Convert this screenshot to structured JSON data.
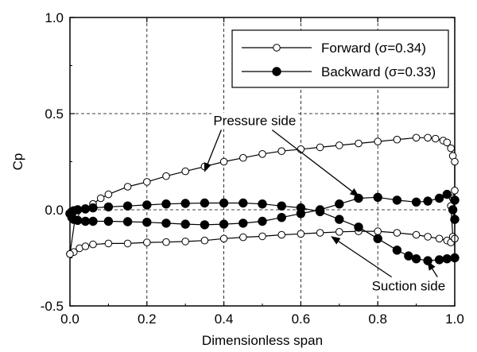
{
  "chart_data": {
    "type": "line",
    "xlabel": "Dimensionless span",
    "ylabel": "Cp",
    "xlim": [
      0.0,
      1.0
    ],
    "ylim": [
      -0.5,
      1.0
    ],
    "x_ticks": [
      "0.0",
      "0.2",
      "0.4",
      "0.6",
      "0.8",
      "1.0"
    ],
    "y_ticks": [
      "-0.5",
      "0.0",
      "0.5",
      "1.0"
    ],
    "grid": true,
    "legend_position": "top-right",
    "series": [
      {
        "name": "Forward (σ=0.34)",
        "marker": "open-circle",
        "points": [
          [
            0.0,
            -0.23
          ],
          [
            0.01,
            -0.22
          ],
          [
            0.025,
            -0.2
          ],
          [
            0.04,
            -0.19
          ],
          [
            0.06,
            -0.18
          ],
          [
            0.1,
            -0.175
          ],
          [
            0.15,
            -0.175
          ],
          [
            0.2,
            -0.17
          ],
          [
            0.25,
            -0.168
          ],
          [
            0.3,
            -0.165
          ],
          [
            0.35,
            -0.16
          ],
          [
            0.4,
            -0.15
          ],
          [
            0.45,
            -0.143
          ],
          [
            0.5,
            -0.138
          ],
          [
            0.55,
            -0.13
          ],
          [
            0.6,
            -0.125
          ],
          [
            0.65,
            -0.12
          ],
          [
            0.7,
            -0.115
          ],
          [
            0.75,
            -0.112
          ],
          [
            0.8,
            -0.112
          ],
          [
            0.85,
            -0.12
          ],
          [
            0.9,
            -0.13
          ],
          [
            0.93,
            -0.14
          ],
          [
            0.96,
            -0.15
          ],
          [
            0.98,
            -0.16
          ],
          [
            0.99,
            -0.17
          ],
          [
            1.0,
            -0.15
          ]
        ]
      },
      {
        "name": "Forward (σ=0.34)",
        "marker": "open-circle",
        "points": [
          [
            0.0,
            -0.23
          ],
          [
            0.015,
            -0.02
          ],
          [
            0.04,
            0.0
          ],
          [
            0.06,
            0.03
          ],
          [
            0.08,
            0.06
          ],
          [
            0.1,
            0.08
          ],
          [
            0.15,
            0.12
          ],
          [
            0.2,
            0.145
          ],
          [
            0.25,
            0.175
          ],
          [
            0.3,
            0.2
          ],
          [
            0.35,
            0.225
          ],
          [
            0.4,
            0.25
          ],
          [
            0.45,
            0.27
          ],
          [
            0.5,
            0.29
          ],
          [
            0.55,
            0.305
          ],
          [
            0.6,
            0.315
          ],
          [
            0.65,
            0.325
          ],
          [
            0.7,
            0.335
          ],
          [
            0.75,
            0.345
          ],
          [
            0.8,
            0.355
          ],
          [
            0.85,
            0.365
          ],
          [
            0.9,
            0.375
          ],
          [
            0.93,
            0.375
          ],
          [
            0.95,
            0.37
          ],
          [
            0.97,
            0.36
          ],
          [
            0.98,
            0.35
          ],
          [
            0.99,
            0.32
          ],
          [
            0.995,
            0.28
          ],
          [
            1.0,
            0.25
          ],
          [
            1.0,
            0.1
          ],
          [
            0.995,
            0.06
          ],
          [
            0.99,
            0.02
          ],
          [
            0.995,
            -0.14
          ],
          [
            1.0,
            -0.15
          ]
        ]
      },
      {
        "name": "Backward (σ=0.33)",
        "marker": "filled-circle",
        "points": [
          [
            0.0,
            -0.02
          ],
          [
            0.005,
            -0.04
          ],
          [
            0.01,
            -0.05
          ],
          [
            0.02,
            -0.055
          ],
          [
            0.04,
            -0.06
          ],
          [
            0.06,
            -0.06
          ],
          [
            0.1,
            -0.06
          ],
          [
            0.15,
            -0.062
          ],
          [
            0.2,
            -0.065
          ],
          [
            0.25,
            -0.07
          ],
          [
            0.3,
            -0.075
          ],
          [
            0.35,
            -0.078
          ],
          [
            0.4,
            -0.075
          ],
          [
            0.45,
            -0.07
          ],
          [
            0.5,
            -0.06
          ],
          [
            0.55,
            -0.04
          ],
          [
            0.6,
            -0.02
          ],
          [
            0.65,
            0.0
          ],
          [
            0.7,
            0.03
          ],
          [
            0.75,
            0.06
          ],
          [
            0.8,
            0.065
          ],
          [
            0.85,
            0.05
          ],
          [
            0.9,
            0.04
          ],
          [
            0.93,
            0.045
          ],
          [
            0.96,
            0.06
          ],
          [
            0.98,
            0.08
          ],
          [
            1.0,
            0.05
          ]
        ]
      },
      {
        "name": "Backward (σ=0.33)",
        "marker": "filled-circle",
        "points": [
          [
            0.0,
            -0.02
          ],
          [
            0.005,
            -0.01
          ],
          [
            0.01,
            -0.005
          ],
          [
            0.02,
            0.0
          ],
          [
            0.04,
            0.005
          ],
          [
            0.06,
            0.01
          ],
          [
            0.1,
            0.015
          ],
          [
            0.15,
            0.02
          ],
          [
            0.2,
            0.025
          ],
          [
            0.25,
            0.03
          ],
          [
            0.3,
            0.033
          ],
          [
            0.35,
            0.035
          ],
          [
            0.4,
            0.035
          ],
          [
            0.45,
            0.035
          ],
          [
            0.5,
            0.03
          ],
          [
            0.55,
            0.02
          ],
          [
            0.6,
            0.01
          ],
          [
            0.65,
            -0.01
          ],
          [
            0.7,
            -0.05
          ],
          [
            0.75,
            -0.09
          ],
          [
            0.8,
            -0.15
          ],
          [
            0.85,
            -0.21
          ],
          [
            0.88,
            -0.24
          ],
          [
            0.9,
            -0.255
          ],
          [
            0.93,
            -0.265
          ],
          [
            0.96,
            -0.26
          ],
          [
            0.98,
            -0.255
          ],
          [
            1.0,
            -0.25
          ],
          [
            1.0,
            -0.05
          ],
          [
            0.995,
            0.0
          ],
          [
            1.0,
            0.05
          ]
        ]
      }
    ],
    "annotations": [
      {
        "text": "Pressure side",
        "pos": [
          0.48,
          0.44
        ],
        "arrows_to": [
          [
            0.35,
            0.2
          ],
          [
            0.75,
            0.07
          ]
        ]
      },
      {
        "text": "Suction side",
        "pos": [
          0.88,
          -0.42
        ],
        "arrows_to": [
          [
            0.68,
            -0.14
          ],
          [
            0.93,
            -0.27
          ]
        ]
      }
    ]
  }
}
